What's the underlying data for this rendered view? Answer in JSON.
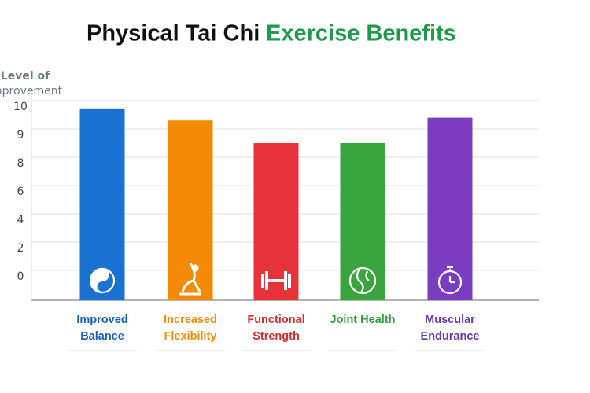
{
  "chart_data": {
    "type": "bar",
    "title": "Physical Tai Chi",
    "title_highlight": "Exercise Benefits",
    "y_label_lines": [
      "Level of",
      "Improvement"
    ],
    "categories": [
      "Improved Balance",
      "Increased Flexibility",
      "Functional Strength",
      "Joint Health",
      "Muscular Endurance"
    ],
    "values": [
      9.7,
      9.3,
      8.5,
      8.5,
      9.4
    ],
    "colors": [
      "#1a73d0",
      "#f58a07",
      "#e8333a",
      "#3aa43f",
      "#7a3cc0"
    ],
    "label_colors": [
      "#1560bd",
      "#f28c0f",
      "#d32f2f",
      "#2e9e3e",
      "#6a3aa8"
    ],
    "ylim": [
      0,
      10
    ],
    "yticks": [
      10,
      9,
      8,
      6,
      4,
      2,
      0
    ],
    "grid": true
  }
}
